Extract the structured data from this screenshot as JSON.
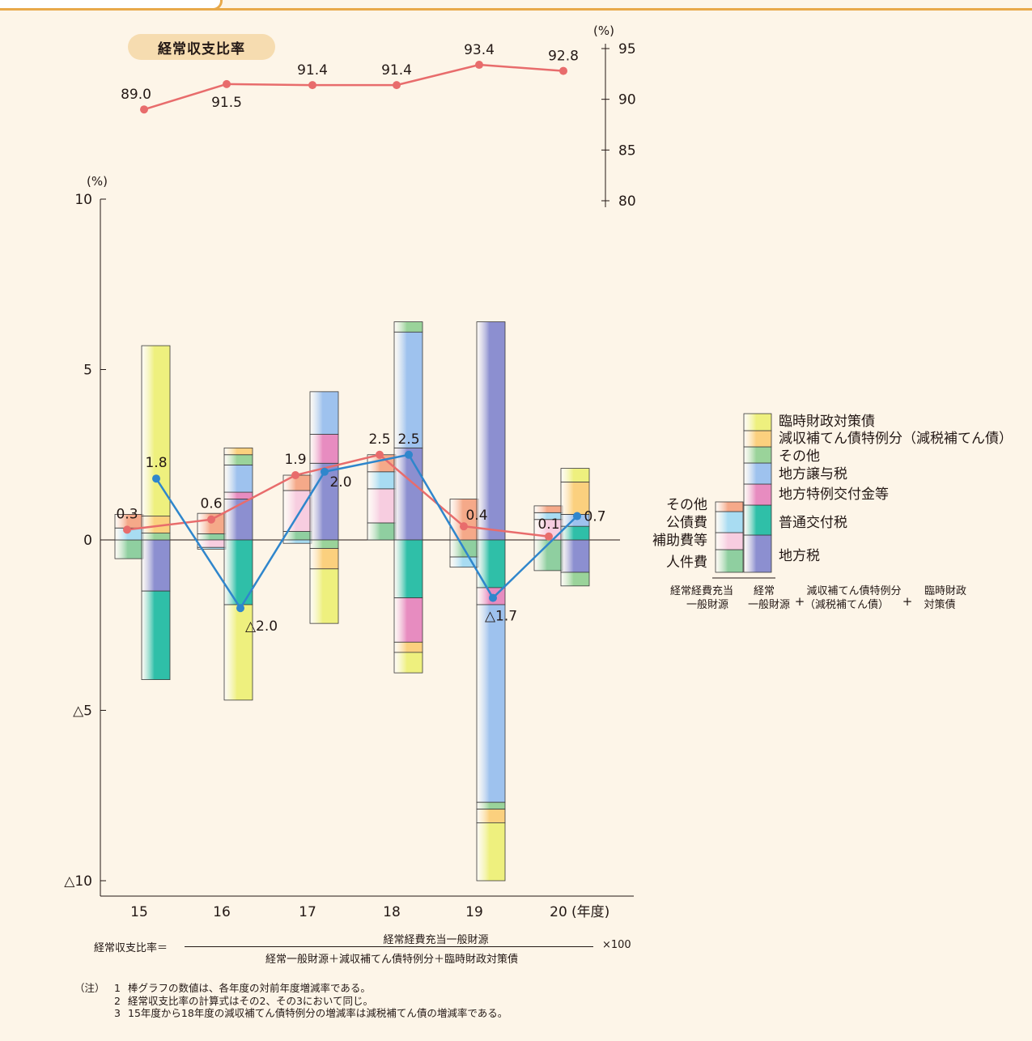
{
  "ratio_title": "経常収支比率",
  "formula": {
    "label": "経常収支比率＝",
    "numerator": "経常経費充当一般財源",
    "denominator": "経常一般財源＋減収補てん債特例分＋臨時財政対策債",
    "multiplier": "×100"
  },
  "notes": {
    "tag": "（注）",
    "items": [
      {
        "num": "1",
        "text": "棒グラフの数値は、各年度の対前年度増減率である。"
      },
      {
        "num": "2",
        "text": "経常収支比率の計算式はその2、その3において同じ。"
      },
      {
        "num": "3",
        "text": "15年度から18年度の減収補てん債特例分の増減率は減税補てん債の増減率である。"
      }
    ]
  },
  "colors": {
    "jinkenhi": "#8fcfa0",
    "hojohi": "#f7cde0",
    "kosaihi": "#a8dcf2",
    "sonota_exp": "#f5a989",
    "chihozei": "#8c8fd0",
    "futsu_kofuzei": "#2fbfa8",
    "tokurei_kofukin": "#e78cc0",
    "joyozei": "#9ec2ee",
    "sonota_rev": "#9ad39a",
    "genshu": "#fbd07e",
    "rinji": "#eef07e",
    "ratio_line": "#e86c6c",
    "growth_line": "#2f86cc"
  },
  "chart_data": [
    {
      "type": "line",
      "title": "経常収支比率",
      "ylabel": "(%)",
      "ylim": [
        80,
        95
      ],
      "yticks": [
        "80",
        "85",
        "90",
        "95"
      ],
      "x": [
        "15",
        "16",
        "17",
        "18",
        "19",
        "20"
      ],
      "values": [
        89.0,
        91.5,
        91.4,
        91.4,
        93.4,
        92.8
      ],
      "labels": [
        "89.0",
        "91.5",
        "91.4",
        "91.4",
        "93.4",
        "92.8"
      ]
    },
    {
      "type": "bar",
      "ylabel": "(%)",
      "xlabel": "(年度)",
      "ylim": [
        -10,
        10
      ],
      "yticks": [
        {
          "v": 10,
          "t": "10"
        },
        {
          "v": 5,
          "t": "5"
        },
        {
          "v": 0,
          "t": "0"
        },
        {
          "v": -5,
          "t": "△5"
        },
        {
          "v": -10,
          "t": "△10"
        }
      ],
      "categories": [
        "15",
        "16",
        "17",
        "18",
        "19",
        "20"
      ],
      "expenditure_segments": [
        [
          {
            "k": "jinkenhi",
            "v": -0.55
          },
          {
            "k": "kosaihi",
            "v": 0.35
          },
          {
            "k": "sonota_exp",
            "v": 0.4
          }
        ],
        [
          {
            "k": "jinkenhi",
            "v": 0.18
          },
          {
            "k": "hojohi",
            "v": -0.22
          },
          {
            "k": "kosaihi",
            "v": -0.05
          },
          {
            "k": "sonota_exp",
            "v": 0.6
          }
        ],
        [
          {
            "k": "jinkenhi",
            "v": 0.25
          },
          {
            "k": "hojohi",
            "v": 1.2
          },
          {
            "k": "kosaihi",
            "v": -0.1
          },
          {
            "k": "sonota_exp",
            "v": 0.45
          }
        ],
        [
          {
            "k": "jinkenhi",
            "v": 0.5
          },
          {
            "k": "hojohi",
            "v": 1.0
          },
          {
            "k": "kosaihi",
            "v": 0.5
          },
          {
            "k": "sonota_exp",
            "v": 0.5
          }
        ],
        [
          {
            "k": "jinkenhi",
            "v": -0.5
          },
          {
            "k": "kosaihi",
            "v": -0.3
          },
          {
            "k": "sonota_exp",
            "v": 1.2
          }
        ],
        [
          {
            "k": "jinkenhi",
            "v": -0.9
          },
          {
            "k": "hojohi",
            "v": 0.6
          },
          {
            "k": "kosaihi",
            "v": 0.2
          },
          {
            "k": "sonota_exp",
            "v": 0.2
          }
        ]
      ],
      "revenue_segments": [
        [
          {
            "k": "chihozei",
            "v": -1.5
          },
          {
            "k": "futsu_kofuzei",
            "v": -2.6
          },
          {
            "k": "sonota_rev",
            "v": 0.2
          },
          {
            "k": "genshu",
            "v": 0.5
          },
          {
            "k": "rinji",
            "v": 5.0
          }
        ],
        [
          {
            "k": "chihozei",
            "v": 1.2
          },
          {
            "k": "futsu_kofuzei",
            "v": -1.9
          },
          {
            "k": "tokurei_kofukin",
            "v": 0.2
          },
          {
            "k": "joyozei",
            "v": 0.8
          },
          {
            "k": "sonota_rev",
            "v": 0.3
          },
          {
            "k": "genshu",
            "v": 0.2
          },
          {
            "k": "rinji",
            "v": -2.8
          }
        ],
        [
          {
            "k": "chihozei",
            "v": 2.25
          },
          {
            "k": "sonota_rev",
            "v": -0.25
          },
          {
            "k": "tokurei_kofukin",
            "v": 0.85
          },
          {
            "k": "joyozei",
            "v": 1.25
          },
          {
            "k": "genshu",
            "v": -0.6
          },
          {
            "k": "rinji",
            "v": -1.6
          }
        ],
        [
          {
            "k": "chihozei",
            "v": 2.7
          },
          {
            "k": "futsu_kofuzei",
            "v": -1.7
          },
          {
            "k": "tokurei_kofukin",
            "v": -1.3
          },
          {
            "k": "joyozei",
            "v": 3.4
          },
          {
            "k": "sonota_rev",
            "v": 0.3
          },
          {
            "k": "genshu",
            "v": -0.3
          },
          {
            "k": "rinji",
            "v": -0.6
          }
        ],
        [
          {
            "k": "chihozei",
            "v": 6.4
          },
          {
            "k": "futsu_kofuzei",
            "v": -1.4
          },
          {
            "k": "tokurei_kofukin",
            "v": -0.5
          },
          {
            "k": "joyozei",
            "v": -5.8
          },
          {
            "k": "sonota_rev",
            "v": -0.2
          },
          {
            "k": "genshu",
            "v": -0.4
          },
          {
            "k": "rinji",
            "v": -1.7
          }
        ],
        [
          {
            "k": "chihozei",
            "v": -0.95
          },
          {
            "k": "sonota_rev",
            "v": -0.4
          },
          {
            "k": "futsu_kofuzei",
            "v": 0.4
          },
          {
            "k": "joyozei",
            "v": 0.35
          },
          {
            "k": "genshu",
            "v": 0.95
          },
          {
            "k": "rinji",
            "v": 0.4
          }
        ]
      ],
      "series": [
        {
          "name": "",
          "color_key": "ratio_line",
          "values": [
            0.3,
            0.6,
            1.9,
            2.5,
            0.4,
            0.1
          ],
          "labels": [
            "0.3",
            "0.6",
            "1.9",
            "2.5",
            "0.4",
            "0.1"
          ]
        },
        {
          "name": "",
          "color_key": "growth_line",
          "values": [
            1.8,
            -2.0,
            2.0,
            2.5,
            -1.7,
            0.7
          ],
          "labels": [
            "1.8",
            "△2.0",
            "2.0",
            "2.5",
            "△1.7",
            "0.7"
          ]
        }
      ],
      "legend": {
        "revenue": [
          {
            "k": "rinji",
            "label": "臨時財政対策債"
          },
          {
            "k": "genshu",
            "label": "減収補てん債特例分（減税補てん債）"
          },
          {
            "k": "sonota_rev",
            "label": "その他"
          },
          {
            "k": "joyozei",
            "label": "地方譲与税"
          },
          {
            "k": "tokurei_kofukin",
            "label": "地方特例交付金等"
          },
          {
            "k": "futsu_kofuzei",
            "label": "普通交付税"
          },
          {
            "k": "chihozei",
            "label": "地方税"
          }
        ],
        "expenditure": [
          {
            "k": "sonota_exp",
            "label": "その他"
          },
          {
            "k": "kosaihi",
            "label": "公債費"
          },
          {
            "k": "hojohi",
            "label": "補助費等"
          },
          {
            "k": "jinkenhi",
            "label": "人件費"
          }
        ],
        "caption_exp": [
          "経常経費充当",
          "一般財源"
        ],
        "caption_rev": [
          "経常",
          "一般財源"
        ],
        "caption_genshu": [
          "減収補てん債特例分",
          "（減税補てん債）"
        ],
        "caption_rinji": [
          "臨時財政",
          "対策債"
        ],
        "plus": "+"
      }
    }
  ]
}
